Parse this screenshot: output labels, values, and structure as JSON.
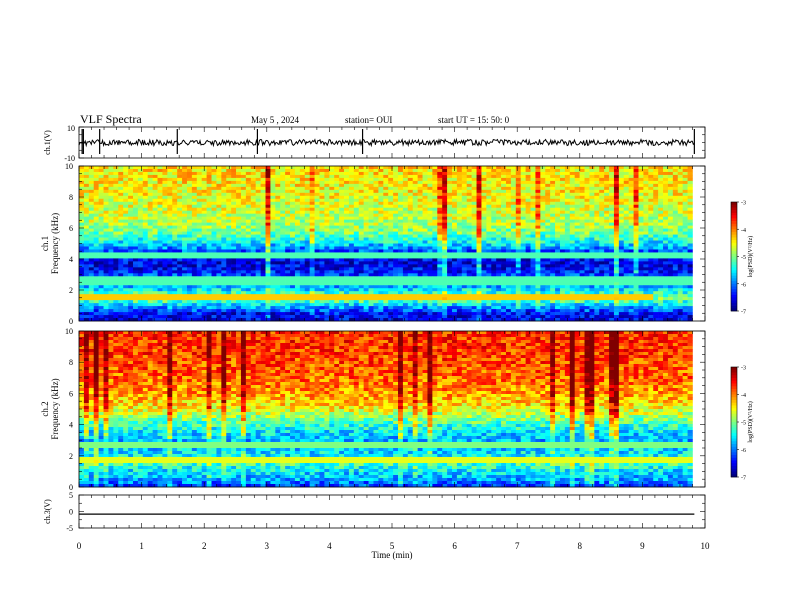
{
  "header": {
    "title": "VLF Spectra",
    "date": "May 5  , 2024",
    "station": "station= OUI",
    "start_ut": "start  UT  =   15: 50: 0"
  },
  "chart_data": [
    {
      "type": "line",
      "panel": "ch1-waveform",
      "ylabel": "ch.1(V)",
      "ylim": [
        -10,
        10
      ],
      "ytick_labels": [
        "10",
        "-10"
      ],
      "series": [
        {
          "values_note_level": 0.0,
          "noise_amplitude": 1.5
        }
      ],
      "spikes_min": [
        0.05,
        0.07,
        0.33,
        1.57,
        2.85,
        4.53,
        9.83
      ],
      "xlim": [
        0,
        10
      ]
    },
    {
      "type": "heatmap",
      "panel": "ch1-spectrogram",
      "ylabel": "ch.1\nFrequency (kHz)",
      "ylim": [
        0,
        10
      ],
      "ytick_labels": [
        "0",
        "2",
        "4",
        "6",
        "8",
        "10"
      ],
      "xlim": [
        0,
        10
      ],
      "data_end_min": 9.8,
      "colorbar": {
        "label": "log(PSD)(V²/Hz)",
        "range": [
          -7,
          -3
        ],
        "tick_labels": [
          "-3",
          "-4",
          "-5",
          "-6",
          "-7"
        ]
      },
      "profile_khz": [
        0,
        0.5,
        1.0,
        1.4,
        1.8,
        2.2,
        2.8,
        3.3,
        3.8,
        4.4,
        5.0,
        5.6,
        6.2,
        7.0,
        8.0,
        9.0,
        10.0
      ],
      "profile_logpsd": [
        -6.6,
        -6.5,
        -5.7,
        -5.0,
        -5.3,
        -5.8,
        -6.1,
        -6.5,
        -6.6,
        -6.3,
        -5.6,
        -5.1,
        -4.8,
        -4.7,
        -4.55,
        -4.45,
        -4.4
      ],
      "lines": [
        {
          "khz": 1.6,
          "t_end_min": 9.15,
          "logpsd": -4.3
        },
        {
          "khz": 2.6,
          "t_end_min": 9.8,
          "logpsd": -5.2
        },
        {
          "khz": 4.2,
          "t_end_min": 9.8,
          "logpsd": -5.2
        }
      ]
    },
    {
      "type": "heatmap",
      "panel": "ch2-spectrogram",
      "ylabel": "ch.2\nFrequency (kHz)",
      "ylim": [
        0,
        10
      ],
      "ytick_labels": [
        "0",
        "2",
        "4",
        "6",
        "8",
        "10"
      ],
      "xlim": [
        0,
        10
      ],
      "data_end_min": 9.8,
      "colorbar": {
        "label": "log(PSD)(V²/Hz)",
        "range": [
          -7,
          -3
        ],
        "tick_labels": [
          "-3",
          "-4",
          "-5",
          "-6",
          "-7"
        ]
      },
      "profile_khz": [
        0,
        0.5,
        1.0,
        1.5,
        2.0,
        2.5,
        3.0,
        3.5,
        4.0,
        4.5,
        5.0,
        6.0,
        7.0,
        8.0,
        9.0,
        10.0
      ],
      "profile_logpsd": [
        -6.3,
        -5.8,
        -5.6,
        -5.2,
        -5.5,
        -5.7,
        -5.8,
        -5.6,
        -5.3,
        -4.9,
        -4.5,
        -4.1,
        -3.9,
        -3.8,
        -3.7,
        -3.65
      ],
      "lines": [
        {
          "khz": 1.7,
          "t_end_min": 9.8,
          "logpsd": -4.6
        },
        {
          "khz": 2.7,
          "t_end_min": 9.8,
          "logpsd": -5.0
        }
      ]
    },
    {
      "type": "line",
      "panel": "ch3-waveform",
      "ylabel": "ch.3(V)",
      "ylim": [
        -5,
        5
      ],
      "ytick_labels": [
        "5",
        "0",
        "-5"
      ],
      "series": [
        {
          "constant_value": -0.8
        }
      ],
      "xlim": [
        0,
        10
      ],
      "xlabel": "Time  (min)",
      "xtick_labels": [
        "0",
        "1",
        "2",
        "3",
        "4",
        "5",
        "6",
        "7",
        "8",
        "9",
        "10"
      ]
    }
  ]
}
